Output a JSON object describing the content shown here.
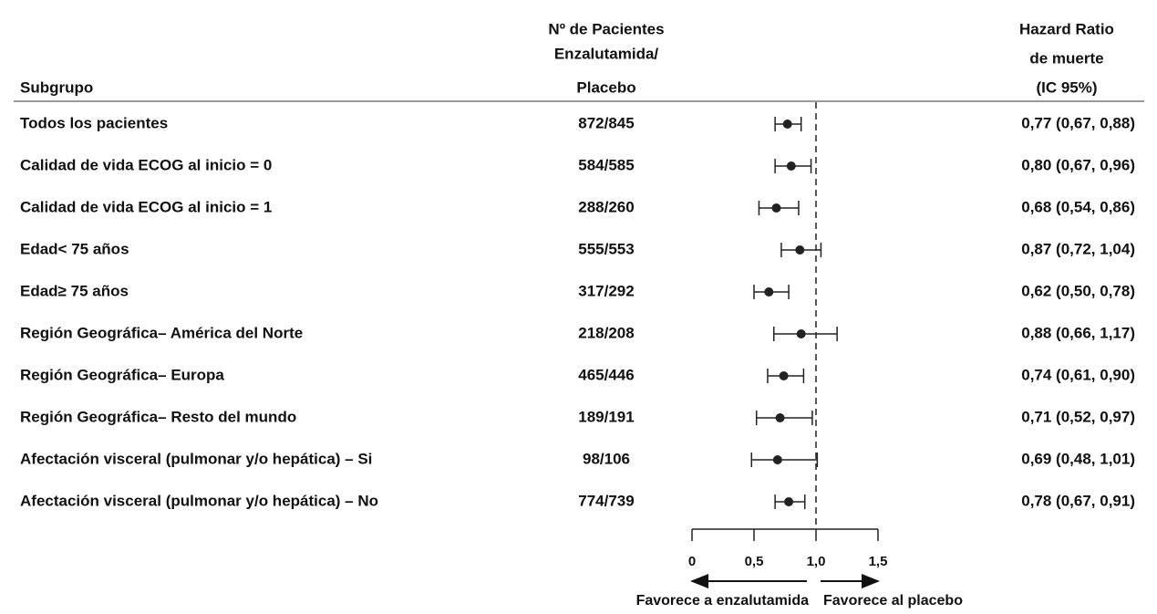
{
  "chart_data": {
    "type": "forest",
    "headers": {
      "subgroup": [
        "Subgrupo"
      ],
      "patients": [
        "Nº de Pacientes",
        "Enzalutamida/",
        "Placebo"
      ],
      "hazard_ratio": [
        "Hazard Ratio",
        "de muerte",
        "(IC 95%)"
      ]
    },
    "categories": [
      "Todos los pacientes",
      "Calidad de vida ECOG  al inicio = 0",
      "Calidad de vida ECOG al inicio = 1",
      "Edad< 75 años",
      "Edad≥ 75 años",
      "Región Geográfica– América del Norte",
      "Región Geográfica– Europa",
      "Región Geográfica– Resto del mundo",
      "Afectación visceral (pulmonar y/o hepática) – Si",
      "Afectación visceral (pulmonar y/o hepática) –  No"
    ],
    "patients": [
      "872/845",
      "584/585",
      "288/260",
      "555/553",
      "317/292",
      "218/208",
      "465/446",
      "189/191",
      "98/106",
      "774/739"
    ],
    "values": [
      0.77,
      0.8,
      0.68,
      0.87,
      0.62,
      0.88,
      0.74,
      0.71,
      0.69,
      0.78
    ],
    "lower": [
      0.67,
      0.67,
      0.54,
      0.72,
      0.5,
      0.66,
      0.61,
      0.52,
      0.48,
      0.67
    ],
    "upper": [
      0.88,
      0.96,
      0.86,
      1.04,
      0.78,
      1.17,
      0.9,
      0.97,
      1.01,
      0.91
    ],
    "value_labels": [
      "0,77 (0,67,  0,88)",
      "0,80 (0,67, 0,96)",
      "0,68 (0,54, 0,86)",
      "0,87 (0,72, 1,04)",
      "0,62 (0,50, 0,78)",
      "0,88 (0,66, 1,17)",
      "0,74 (0,61, 0,90)",
      "0,71 (0,52, 0,97)",
      "0,69 (0,48, 1,01)",
      "0,78 (0,67, 0,91)"
    ],
    "color": "#222222",
    "xlim": [
      0,
      1.5
    ],
    "xticks": [
      0,
      {
        "value": 0.5,
        "label": "0,5"
      },
      {
        "value": 1,
        "label": "1,0"
      },
      {
        "value": 1.5,
        "label": "1,5"
      }
    ],
    "reference": 1,
    "annotations": [
      "Favorece a enzalutamida",
      "Favorece al placebo"
    ]
  }
}
